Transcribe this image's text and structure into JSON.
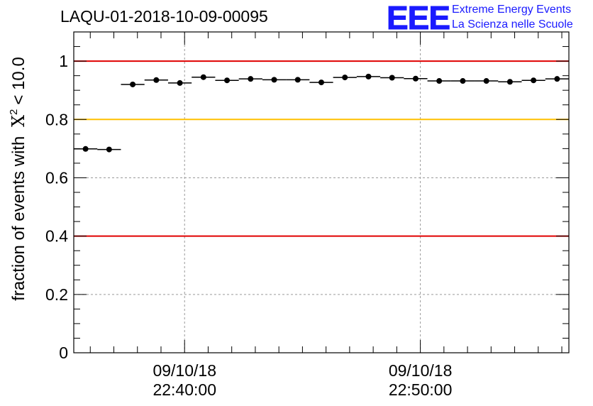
{
  "chart_data": {
    "type": "scatter",
    "title": "LAQU-01-2018-10-09-00095",
    "ylabel": "fraction of events with",
    "ylabel_symbol": "X",
    "ylabel_sup": "2",
    "ylabel_tail": "< 10.0",
    "ylim": [
      0,
      1.1
    ],
    "yticks": [
      0,
      0.2,
      0.4,
      0.6,
      0.8,
      1
    ],
    "ytick_labels": [
      "0",
      "0.2",
      "0.4",
      "0.6",
      "0.8",
      "1"
    ],
    "xlim_minutes": [
      0,
      21
    ],
    "x_major_ticks": [
      {
        "minute": 4.7,
        "date": "09/10/18",
        "time": "22:40:00"
      },
      {
        "minute": 14.7,
        "date": "09/10/18",
        "time": "22:50:00"
      }
    ],
    "reference_lines": [
      {
        "y": 1.0,
        "color": "#e00000"
      },
      {
        "y": 0.8,
        "color": "#ffc000"
      },
      {
        "y": 0.4,
        "color": "#e00000"
      }
    ],
    "bin_width_minutes": 1,
    "x": [
      0.5,
      1.5,
      2.5,
      3.5,
      4.5,
      5.5,
      6.5,
      7.5,
      8.5,
      9.5,
      10.5,
      11.5,
      12.5,
      13.5,
      14.5,
      15.5,
      16.5,
      17.5,
      18.5,
      19.5,
      20.5
    ],
    "values": [
      0.699,
      0.697,
      0.92,
      0.935,
      0.925,
      0.945,
      0.934,
      0.939,
      0.936,
      0.936,
      0.927,
      0.944,
      0.947,
      0.943,
      0.94,
      0.932,
      0.932,
      0.932,
      0.929,
      0.934,
      0.939
    ]
  },
  "logo": {
    "mark": "EEE",
    "line1": "Extreme Energy Events",
    "line2": "La Scienza nelle Scuole"
  }
}
